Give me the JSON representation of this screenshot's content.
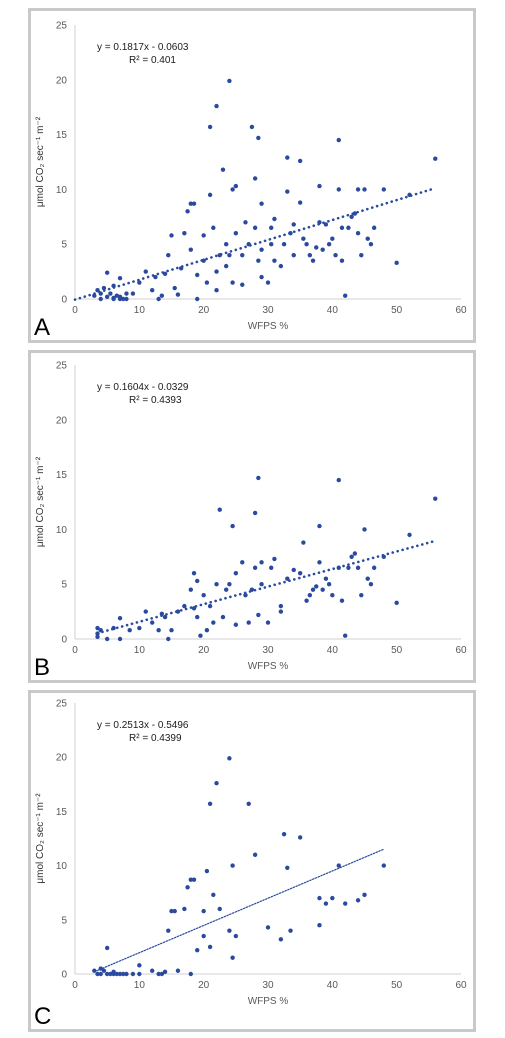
{
  "colors": {
    "marker": "#2a4a9f",
    "trend": "#2a4a9f",
    "axis": "#d0d0d0",
    "text": "#595959",
    "frame": "#c9c9c9"
  },
  "chart_data": [
    {
      "type": "scatter",
      "panel_label": "A",
      "equation": "y = 0.1817x - 0.0603",
      "r2_label": "R² = 0.401",
      "trendline": {
        "slope": 0.1817,
        "intercept": -0.0603,
        "x_range": [
          0,
          56
        ],
        "style": "thick dotted"
      },
      "xlabel": "WFPS %",
      "ylabel": "μmol CO₂ sec⁻¹ m⁻²",
      "xlim": [
        0,
        60
      ],
      "ylim": [
        0,
        25
      ],
      "xticks": [
        "0",
        "10",
        "20",
        "30",
        "40",
        "50",
        "60"
      ],
      "yticks": [
        "0",
        "5",
        "10",
        "15",
        "20",
        "25"
      ],
      "points": [
        [
          3,
          0.3
        ],
        [
          3.5,
          0.8
        ],
        [
          4,
          0.5
        ],
        [
          4,
          0
        ],
        [
          4.5,
          1
        ],
        [
          5,
          0.2
        ],
        [
          5,
          2.4
        ],
        [
          5.5,
          0.5
        ],
        [
          6,
          0.1
        ],
        [
          6,
          0
        ],
        [
          6.5,
          0.3
        ],
        [
          7,
          0
        ],
        [
          7,
          0.2
        ],
        [
          7.5,
          0
        ],
        [
          8,
          0
        ],
        [
          8,
          0.5
        ],
        [
          7,
          1.9
        ],
        [
          6,
          1.2
        ],
        [
          9,
          0.5
        ],
        [
          10,
          1.5
        ],
        [
          11,
          2.5
        ],
        [
          12,
          0.8
        ],
        [
          12.5,
          2
        ],
        [
          13,
          0
        ],
        [
          13.5,
          0.3
        ],
        [
          14,
          2.3
        ],
        [
          14.5,
          4
        ],
        [
          15,
          5.8
        ],
        [
          15.5,
          1
        ],
        [
          16,
          0.4
        ],
        [
          16.5,
          2.8
        ],
        [
          17,
          6
        ],
        [
          17.5,
          8
        ],
        [
          18,
          8.7
        ],
        [
          18.5,
          8.7
        ],
        [
          18,
          4.5
        ],
        [
          19,
          0
        ],
        [
          19,
          2.2
        ],
        [
          20,
          5.8
        ],
        [
          20,
          3.5
        ],
        [
          20.5,
          1.5
        ],
        [
          21,
          15.7
        ],
        [
          21,
          9.5
        ],
        [
          21.5,
          6.5
        ],
        [
          22,
          17.6
        ],
        [
          22,
          2.5
        ],
        [
          22.5,
          4
        ],
        [
          22,
          0.8
        ],
        [
          23,
          11.8
        ],
        [
          23.5,
          5
        ],
        [
          23.5,
          3
        ],
        [
          24,
          19.9
        ],
        [
          24,
          4
        ],
        [
          24.5,
          1.5
        ],
        [
          24.5,
          10
        ],
        [
          25,
          10.3
        ],
        [
          25,
          6
        ],
        [
          26,
          4
        ],
        [
          26,
          1.3
        ],
        [
          26.5,
          7
        ],
        [
          27,
          5
        ],
        [
          27.5,
          15.7
        ],
        [
          28,
          11
        ],
        [
          28,
          6.5
        ],
        [
          28.5,
          14.7
        ],
        [
          28.5,
          3.5
        ],
        [
          29,
          4.5
        ],
        [
          29,
          8.7
        ],
        [
          29,
          2
        ],
        [
          30,
          1.5
        ],
        [
          30.5,
          6.5
        ],
        [
          30.5,
          5
        ],
        [
          31,
          7.3
        ],
        [
          31,
          3.5
        ],
        [
          32,
          3
        ],
        [
          32.5,
          5
        ],
        [
          33,
          12.9
        ],
        [
          33,
          9.8
        ],
        [
          33.5,
          6
        ],
        [
          34,
          6.8
        ],
        [
          34,
          4
        ],
        [
          35,
          12.6
        ],
        [
          35,
          8.8
        ],
        [
          35.5,
          5.5
        ],
        [
          36,
          5
        ],
        [
          36.5,
          4
        ],
        [
          37,
          3.5
        ],
        [
          37.5,
          4.7
        ],
        [
          38,
          10.3
        ],
        [
          38,
          7
        ],
        [
          38.5,
          4.5
        ],
        [
          39,
          6.8
        ],
        [
          39.5,
          5
        ],
        [
          40,
          5.5
        ],
        [
          40.5,
          4
        ],
        [
          41,
          14.5
        ],
        [
          41,
          10
        ],
        [
          41.5,
          3.5
        ],
        [
          41.5,
          6.5
        ],
        [
          42,
          0.3
        ],
        [
          42.5,
          6.5
        ],
        [
          43,
          7.5
        ],
        [
          43.5,
          7.8
        ],
        [
          44,
          6
        ],
        [
          44,
          10
        ],
        [
          44.5,
          4
        ],
        [
          45,
          10
        ],
        [
          45.5,
          5.5
        ],
        [
          46,
          5
        ],
        [
          46.5,
          6.5
        ],
        [
          48,
          10
        ],
        [
          50,
          3.3
        ],
        [
          52,
          9.5
        ],
        [
          56,
          12.8
        ]
      ]
    },
    {
      "type": "scatter",
      "panel_label": "B",
      "equation": "y = 0.1604x - 0.0329",
      "r2_label": "R² = 0.4393",
      "trendline": {
        "slope": 0.1604,
        "intercept": -0.0329,
        "x_range": [
          3.5,
          56
        ],
        "style": "thick dotted"
      },
      "xlabel": "WFPS %",
      "ylabel": "μmol CO₂ sec⁻¹ m⁻²",
      "xlim": [
        0,
        60
      ],
      "ylim": [
        0,
        25
      ],
      "xticks": [
        "0",
        "10",
        "20",
        "30",
        "40",
        "50",
        "60"
      ],
      "yticks": [
        "0",
        "5",
        "10",
        "15",
        "20",
        "25"
      ],
      "points": [
        [
          3.5,
          1
        ],
        [
          3.5,
          0.5
        ],
        [
          3.5,
          0.2
        ],
        [
          4,
          0.8
        ],
        [
          5,
          0
        ],
        [
          6,
          1
        ],
        [
          7,
          1.9
        ],
        [
          7,
          0
        ],
        [
          8.5,
          0.8
        ],
        [
          10,
          1
        ],
        [
          11,
          2.5
        ],
        [
          12,
          1.5
        ],
        [
          13,
          0.8
        ],
        [
          13.5,
          2.3
        ],
        [
          14,
          2
        ],
        [
          14.5,
          0
        ],
        [
          15,
          0.8
        ],
        [
          16,
          2.5
        ],
        [
          17,
          3
        ],
        [
          18,
          4.5
        ],
        [
          18.5,
          2.8
        ],
        [
          18.5,
          6
        ],
        [
          19,
          5.3
        ],
        [
          19,
          2
        ],
        [
          19.5,
          0.3
        ],
        [
          20,
          4
        ],
        [
          20.5,
          0.8
        ],
        [
          21,
          3
        ],
        [
          21.5,
          1.5
        ],
        [
          22,
          5
        ],
        [
          22.5,
          11.8
        ],
        [
          23,
          2
        ],
        [
          23.5,
          4.5
        ],
        [
          24,
          5
        ],
        [
          24.5,
          10.3
        ],
        [
          25,
          1.3
        ],
        [
          25,
          6
        ],
        [
          26,
          7
        ],
        [
          26.5,
          4
        ],
        [
          27,
          1.5
        ],
        [
          27.5,
          4.5
        ],
        [
          28,
          6.5
        ],
        [
          28,
          11.5
        ],
        [
          28.5,
          14.7
        ],
        [
          28.5,
          2.2
        ],
        [
          29,
          5
        ],
        [
          29,
          7
        ],
        [
          30,
          1.5
        ],
        [
          30.5,
          6.5
        ],
        [
          31,
          7.3
        ],
        [
          32,
          3
        ],
        [
          32,
          2.5
        ],
        [
          33,
          5.5
        ],
        [
          34,
          6.3
        ],
        [
          35,
          6
        ],
        [
          35.5,
          8.8
        ],
        [
          36,
          3.5
        ],
        [
          36.5,
          4
        ],
        [
          37,
          4.5
        ],
        [
          37.5,
          4.8
        ],
        [
          38,
          10.3
        ],
        [
          38,
          7
        ],
        [
          38.5,
          4.5
        ],
        [
          39,
          5.5
        ],
        [
          39.5,
          5
        ],
        [
          40,
          4
        ],
        [
          41,
          14.5
        ],
        [
          41,
          6.5
        ],
        [
          41.5,
          3.5
        ],
        [
          42,
          0.3
        ],
        [
          42.5,
          6.5
        ],
        [
          43,
          7.5
        ],
        [
          43.5,
          7.8
        ],
        [
          44,
          6.5
        ],
        [
          44.5,
          4
        ],
        [
          45,
          10
        ],
        [
          45.5,
          5.5
        ],
        [
          46,
          5
        ],
        [
          46.5,
          6.5
        ],
        [
          48,
          7.5
        ],
        [
          50,
          3.3
        ],
        [
          52,
          9.5
        ],
        [
          56,
          12.8
        ]
      ]
    },
    {
      "type": "scatter",
      "panel_label": "C",
      "equation": "y = 0.2513x - 0.5496",
      "r2_label": "R² = 0.4399",
      "trendline": {
        "slope": 0.2513,
        "intercept": -0.5496,
        "x_range": [
          3,
          48
        ],
        "style": "thin dotted"
      },
      "xlabel": "WFPS %",
      "ylabel": "μmol CO₂ sec⁻¹ m⁻²",
      "xlim": [
        0,
        60
      ],
      "ylim": [
        0,
        25
      ],
      "xticks": [
        "0",
        "10",
        "20",
        "30",
        "40",
        "50",
        "60"
      ],
      "yticks": [
        "0",
        "5",
        "10",
        "15",
        "20",
        "25"
      ],
      "points": [
        [
          3,
          0.3
        ],
        [
          3.5,
          0
        ],
        [
          4,
          0.5
        ],
        [
          4,
          0
        ],
        [
          4.5,
          0.3
        ],
        [
          5,
          0
        ],
        [
          5,
          2.4
        ],
        [
          5.5,
          0
        ],
        [
          6,
          0
        ],
        [
          6,
          0.2
        ],
        [
          6.5,
          0
        ],
        [
          7,
          0
        ],
        [
          7.5,
          0
        ],
        [
          8,
          0
        ],
        [
          9,
          0
        ],
        [
          10,
          0
        ],
        [
          10,
          0.8
        ],
        [
          12,
          0.3
        ],
        [
          13,
          0
        ],
        [
          13.5,
          0
        ],
        [
          14,
          0.2
        ],
        [
          14.5,
          4
        ],
        [
          15,
          5.8
        ],
        [
          15.5,
          5.8
        ],
        [
          16,
          0.3
        ],
        [
          17,
          6
        ],
        [
          17.5,
          8
        ],
        [
          18,
          8.7
        ],
        [
          18.5,
          8.7
        ],
        [
          18,
          0
        ],
        [
          19,
          2.2
        ],
        [
          20,
          5.8
        ],
        [
          20,
          3.5
        ],
        [
          20.5,
          9.5
        ],
        [
          21,
          15.7
        ],
        [
          21,
          2.5
        ],
        [
          21.5,
          7.3
        ],
        [
          22,
          17.6
        ],
        [
          22.5,
          6
        ],
        [
          24,
          19.9
        ],
        [
          24,
          4
        ],
        [
          24.5,
          1.5
        ],
        [
          24.5,
          10
        ],
        [
          25,
          3.5
        ],
        [
          27,
          15.7
        ],
        [
          28,
          11
        ],
        [
          30,
          4.3
        ],
        [
          32,
          3.2
        ],
        [
          32.5,
          12.9
        ],
        [
          33,
          9.8
        ],
        [
          33.5,
          4
        ],
        [
          35,
          12.6
        ],
        [
          38,
          4.5
        ],
        [
          38,
          7
        ],
        [
          39,
          6.5
        ],
        [
          40,
          7
        ],
        [
          41,
          10
        ],
        [
          42,
          6.5
        ],
        [
          44,
          6.8
        ],
        [
          45,
          7.3
        ],
        [
          48,
          10
        ]
      ]
    }
  ]
}
